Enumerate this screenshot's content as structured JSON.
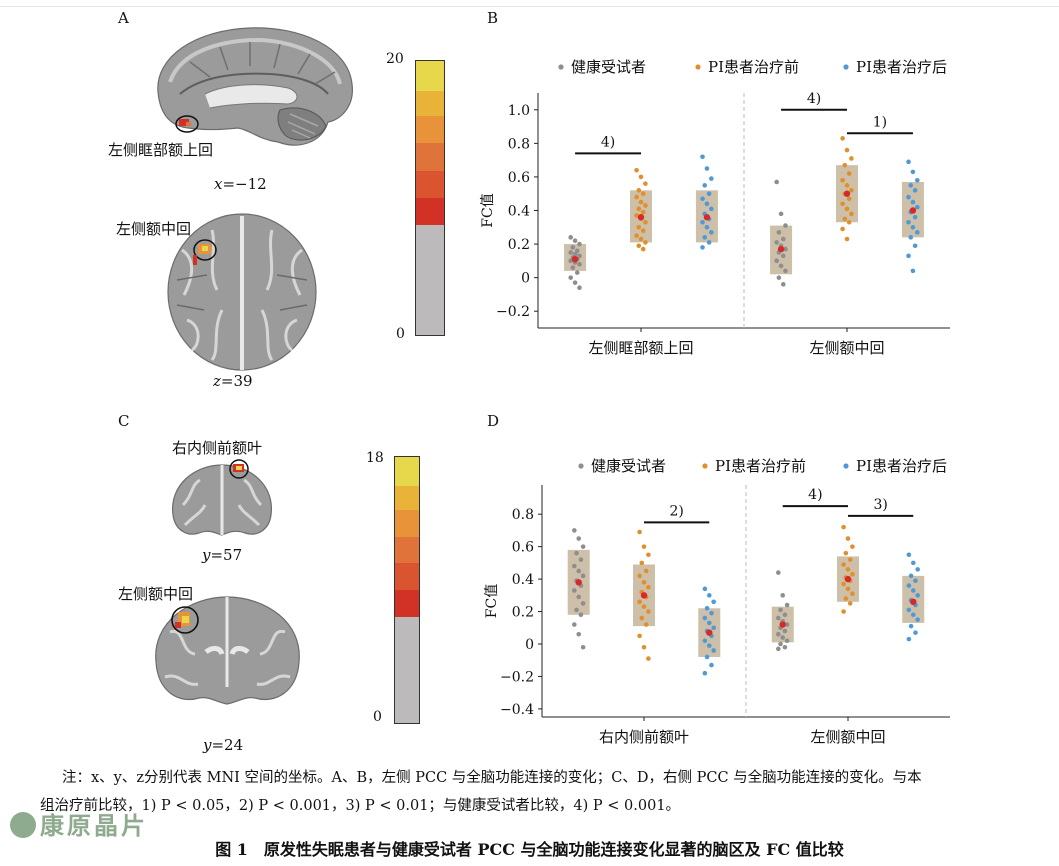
{
  "panels": {
    "A": {
      "letter": "A",
      "regions": [
        "左侧眶部额上回",
        "左侧额中回"
      ],
      "coords": [
        {
          "axis": "x",
          "value": "=−12"
        },
        {
          "axis": "z",
          "value": "=39"
        }
      ],
      "colorbar": {
        "max": "20",
        "min": "0",
        "colors": [
          "#e6d84a",
          "#e8b338",
          "#e8923a",
          "#e0733a",
          "#db5430",
          "#d23226",
          "#bdbabc"
        ]
      }
    },
    "B": {
      "letter": "B"
    },
    "C": {
      "letter": "C",
      "regions": [
        "右内侧前额叶",
        "左侧额中回"
      ],
      "coords": [
        {
          "axis": "y",
          "value": "=57"
        },
        {
          "axis": "y",
          "value": "=24"
        }
      ],
      "colorbar": {
        "max": "18",
        "min": "0",
        "colors": [
          "#e6d84a",
          "#e8b338",
          "#e8923a",
          "#e0733a",
          "#db5430",
          "#d23226",
          "#bdbabc"
        ]
      }
    },
    "D": {
      "letter": "D"
    }
  },
  "legend": [
    "健康受试者",
    "PI患者治疗前",
    "PI患者治疗后"
  ],
  "colors": {
    "healthy": "#8e8e8e",
    "pre": "#e0902a",
    "post": "#4f9ad6",
    "mean": "#d62a2a",
    "box": "#cdbfa8"
  },
  "chart_data": [
    {
      "panel": "B",
      "type": "scatter",
      "ylabel": "FC值",
      "ylim": [
        -0.3,
        1.1
      ],
      "yticks": [
        "1.0",
        "0.8",
        "0.6",
        "0.4",
        "0.2",
        "0",
        "−0.2"
      ],
      "ytick_values": [
        1.0,
        0.8,
        0.6,
        0.4,
        0.2,
        0,
        -0.2
      ],
      "groups": [
        "左侧眶部额上回",
        "左侧额中回"
      ],
      "series": [
        {
          "name": "健康受试者",
          "group": 0,
          "box": [
            0.04,
            0.2
          ],
          "mean": 0.11,
          "points": [
            0.24,
            0.22,
            0.2,
            0.18,
            0.16,
            0.15,
            0.14,
            0.13,
            0.12,
            0.11,
            0.1,
            0.09,
            0.08,
            0.06,
            0.03,
            0.0,
            -0.03,
            -0.06
          ]
        },
        {
          "name": "PI患者治疗前",
          "group": 0,
          "box": [
            0.21,
            0.52
          ],
          "mean": 0.36,
          "points": [
            0.64,
            0.6,
            0.56,
            0.52,
            0.5,
            0.48,
            0.45,
            0.43,
            0.41,
            0.39,
            0.37,
            0.35,
            0.33,
            0.3,
            0.28,
            0.25,
            0.23,
            0.21,
            0.19,
            0.17
          ]
        },
        {
          "name": "PI患者治疗后",
          "group": 0,
          "box": [
            0.21,
            0.52
          ],
          "mean": 0.36,
          "points": [
            0.72,
            0.65,
            0.59,
            0.55,
            0.5,
            0.47,
            0.44,
            0.41,
            0.38,
            0.35,
            0.33,
            0.3,
            0.27,
            0.24,
            0.21,
            0.18
          ]
        },
        {
          "name": "健康受试者",
          "group": 1,
          "box": [
            0.02,
            0.31
          ],
          "mean": 0.17,
          "points": [
            0.57,
            0.38,
            0.31,
            0.27,
            0.23,
            0.21,
            0.19,
            0.17,
            0.15,
            0.13,
            0.1,
            0.07,
            0.04,
            0.0,
            -0.04
          ]
        },
        {
          "name": "PI患者治疗前",
          "group": 1,
          "box": [
            0.33,
            0.67
          ],
          "mean": 0.5,
          "points": [
            0.83,
            0.76,
            0.71,
            0.67,
            0.62,
            0.58,
            0.55,
            0.52,
            0.5,
            0.47,
            0.44,
            0.41,
            0.38,
            0.35,
            0.33,
            0.29,
            0.23
          ]
        },
        {
          "name": "PI患者治疗后",
          "group": 1,
          "box": [
            0.24,
            0.57
          ],
          "mean": 0.4,
          "points": [
            0.69,
            0.63,
            0.58,
            0.55,
            0.52,
            0.48,
            0.45,
            0.42,
            0.39,
            0.36,
            0.33,
            0.3,
            0.27,
            0.24,
            0.19,
            0.13,
            0.04
          ]
        }
      ],
      "annotations": [
        {
          "text": "4)",
          "group": 0,
          "from": 0,
          "to": 1,
          "y": 0.74
        },
        {
          "text": "4)",
          "group": 1,
          "from": 0,
          "to": 1,
          "y": 1.0
        },
        {
          "text": "1)",
          "group": 1,
          "from": 1,
          "to": 2,
          "y": 0.86
        }
      ]
    },
    {
      "panel": "D",
      "type": "scatter",
      "ylabel": "FC值",
      "ylim": [
        -0.45,
        0.98
      ],
      "yticks": [
        "0.8",
        "0.6",
        "0.4",
        "0.2",
        "0",
        "−0.2",
        "−0.4"
      ],
      "ytick_values": [
        0.8,
        0.6,
        0.4,
        0.2,
        0,
        -0.2,
        -0.4
      ],
      "groups": [
        "右内侧前额叶",
        "左侧额中回"
      ],
      "series": [
        {
          "name": "健康受试者",
          "group": 0,
          "box": [
            0.18,
            0.58
          ],
          "mean": 0.38,
          "points": [
            0.7,
            0.65,
            0.6,
            0.56,
            0.52,
            0.48,
            0.45,
            0.42,
            0.39,
            0.36,
            0.33,
            0.29,
            0.25,
            0.21,
            0.18,
            0.12,
            0.06,
            -0.02
          ]
        },
        {
          "name": "PI患者治疗前",
          "group": 0,
          "box": [
            0.11,
            0.49
          ],
          "mean": 0.3,
          "points": [
            0.69,
            0.6,
            0.55,
            0.5,
            0.45,
            0.42,
            0.38,
            0.35,
            0.32,
            0.29,
            0.26,
            0.23,
            0.2,
            0.16,
            0.12,
            0.05,
            -0.02,
            -0.09
          ]
        },
        {
          "name": "PI患者治疗后",
          "group": 0,
          "box": [
            -0.08,
            0.22
          ],
          "mean": 0.07,
          "points": [
            0.34,
            0.3,
            0.26,
            0.22,
            0.19,
            0.16,
            0.13,
            0.1,
            0.08,
            0.05,
            0.02,
            -0.01,
            -0.04,
            -0.08,
            -0.13,
            -0.18
          ]
        },
        {
          "name": "健康受试者",
          "group": 1,
          "box": [
            0.01,
            0.23
          ],
          "mean": 0.12,
          "points": [
            0.44,
            0.3,
            0.24,
            0.21,
            0.18,
            0.16,
            0.14,
            0.12,
            0.1,
            0.08,
            0.06,
            0.04,
            0.02,
            0.0,
            -0.02,
            -0.03
          ]
        },
        {
          "name": "PI患者治疗前",
          "group": 1,
          "box": [
            0.26,
            0.54
          ],
          "mean": 0.4,
          "points": [
            0.72,
            0.65,
            0.6,
            0.56,
            0.52,
            0.49,
            0.46,
            0.43,
            0.41,
            0.39,
            0.37,
            0.34,
            0.31,
            0.28,
            0.25,
            0.2
          ]
        },
        {
          "name": "PI患者治疗后",
          "group": 1,
          "box": [
            0.13,
            0.42
          ],
          "mean": 0.26,
          "points": [
            0.55,
            0.5,
            0.46,
            0.42,
            0.39,
            0.36,
            0.33,
            0.3,
            0.27,
            0.24,
            0.21,
            0.18,
            0.15,
            0.11,
            0.07,
            0.03
          ]
        }
      ],
      "annotations": [
        {
          "text": "2)",
          "group": 0,
          "from": 1,
          "to": 2,
          "y": 0.75
        },
        {
          "text": "4)",
          "group": 1,
          "from": 0,
          "to": 1,
          "y": 0.85
        },
        {
          "text": "3)",
          "group": 1,
          "from": 1,
          "to": 2,
          "y": 0.79
        }
      ]
    }
  ],
  "note": {
    "line1": "注：x、y、z分别代表 MNI 空间的坐标。A、B，左侧 PCC 与全脑功能连接的变化；C、D，右侧 PCC 与全脑功能连接的变化。与本",
    "line2": "组治疗前比较，1) P < 0.05，2) P < 0.001，3) P < 0.01；与健康受试者比较，4) P < 0.001。"
  },
  "caption": "图 1　原发性失眠患者与健康受试者 PCC 与全脑功能连接变化显著的脑区及 FC 值比较",
  "watermark": "康原晶片"
}
